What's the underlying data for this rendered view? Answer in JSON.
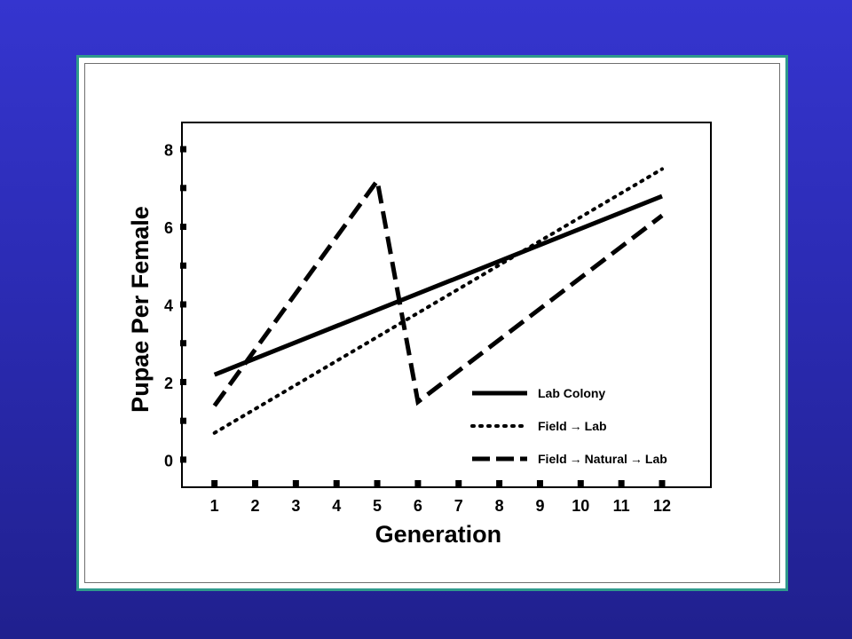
{
  "chart_data": {
    "type": "line",
    "xlabel": "Generation",
    "ylabel": "Pupae Per Female",
    "x": [
      1,
      2,
      3,
      4,
      5,
      6,
      7,
      8,
      9,
      10,
      11,
      12
    ],
    "xlim": [
      0.2,
      13.2
    ],
    "ylim": [
      -0.7,
      8.7
    ],
    "yticks": [
      0,
      2,
      4,
      6,
      8
    ],
    "grid": false,
    "legend_position": "bottom-right",
    "series": [
      {
        "name": "Lab Colony",
        "style": "solid",
        "points": [
          [
            1,
            2.2
          ],
          [
            12,
            6.8
          ]
        ]
      },
      {
        "name": "Field → Lab",
        "style": "dotted",
        "points": [
          [
            1,
            0.7
          ],
          [
            12,
            7.5
          ]
        ]
      },
      {
        "name": "Field → Natural → Lab",
        "style": "dashed",
        "points": [
          [
            1,
            1.4
          ],
          [
            5,
            7.2
          ],
          [
            6,
            1.5
          ],
          [
            12,
            6.3
          ]
        ]
      }
    ],
    "legend": [
      {
        "parts": [
          "Lab Colony"
        ],
        "style": "solid"
      },
      {
        "parts": [
          "Field",
          "Lab"
        ],
        "style": "dotted"
      },
      {
        "parts": [
          "Field",
          "Natural",
          "Lab"
        ],
        "style": "dashed"
      }
    ]
  }
}
